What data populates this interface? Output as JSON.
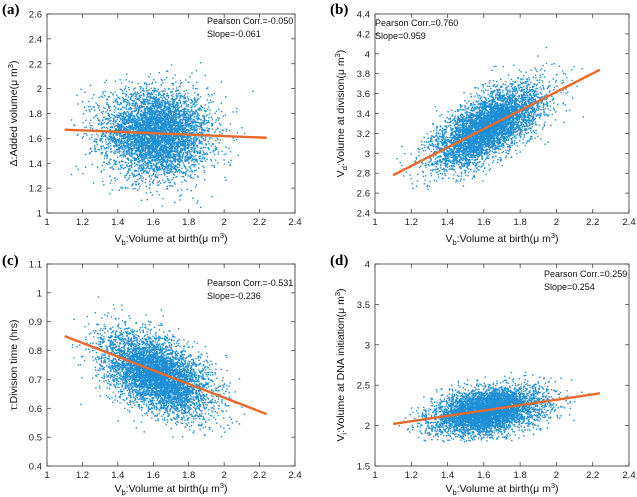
{
  "chart_data": [
    {
      "panel": "(a)",
      "type": "scatter",
      "xlabel": "V_b:Volume at birth(μ m^3)",
      "ylabel": "Δ:Added volume(μ m^3)",
      "xlim": [
        1,
        2.4
      ],
      "ylim": [
        1,
        2.6
      ],
      "xticks": [
        "1",
        "1.2",
        "1.4",
        "1.6",
        "1.8",
        "2",
        "2.2",
        "2.4"
      ],
      "yticks": [
        "1",
        "1.2",
        "1.4",
        "1.6",
        "1.8",
        "2",
        "2.2",
        "2.4",
        "2.6"
      ],
      "annotations": [
        "Pearson Corr.=-0.050",
        "Slope=-0.061"
      ],
      "scatter_cloud": {
        "x_center": 1.62,
        "x_sd": 0.15,
        "y_center": 1.64,
        "y_sd": 0.17,
        "x_range": [
          1.12,
          2.22
        ],
        "y_range": [
          1.02,
          2.5
        ],
        "color": "#1f8fd6"
      },
      "fit_line": {
        "x": [
          1.1,
          2.24
        ],
        "y": [
          1.67,
          1.605
        ],
        "color": "#e8692c"
      }
    },
    {
      "panel": "(b)",
      "type": "scatter",
      "xlabel": "V_b:Volume at birth(μ m^3)",
      "ylabel": "V_d:Volume at division(μ m^3)",
      "xlim": [
        1,
        2.4
      ],
      "ylim": [
        2.4,
        4.4
      ],
      "xticks": [
        "1",
        "1.2",
        "1.4",
        "1.6",
        "1.8",
        "2",
        "2.2",
        "2.4"
      ],
      "yticks": [
        "2.4",
        "2.6",
        "2.8",
        "3",
        "3.2",
        "3.4",
        "3.6",
        "3.8",
        "4",
        "4.2",
        "4.4"
      ],
      "annotations": [
        "Pearson Corr.=0.760",
        "Slope=0.959"
      ],
      "scatter_cloud": {
        "x_center": 1.62,
        "x_sd": 0.15,
        "y_center": 3.26,
        "y_sd": 0.19,
        "x_range": [
          1.12,
          2.22
        ],
        "y_range": [
          2.62,
          4.18
        ],
        "color": "#1f8fd6"
      },
      "fit_line": {
        "x": [
          1.1,
          2.24
        ],
        "y": [
          2.78,
          3.84
        ],
        "color": "#e8692c"
      }
    },
    {
      "panel": "(c)",
      "type": "scatter",
      "xlabel": "V_b:Volume at birth(μ m^3)",
      "ylabel": "τ:Division time (hrs)",
      "xlim": [
        1,
        2.4
      ],
      "ylim": [
        0.4,
        1.1
      ],
      "xticks": [
        "1",
        "1.2",
        "1.4",
        "1.6",
        "1.8",
        "2",
        "2.2",
        "2.4"
      ],
      "yticks": [
        "0.4",
        "0.5",
        "0.6",
        "0.7",
        "0.8",
        "0.9",
        "1",
        "1.1"
      ],
      "annotations": [
        "Pearson Corr.=-0.531",
        "Slope=-0.236"
      ],
      "scatter_cloud": {
        "x_center": 1.62,
        "x_sd": 0.15,
        "y_center": 0.715,
        "y_sd": 0.068,
        "x_range": [
          1.12,
          2.22
        ],
        "y_range": [
          0.5,
          1.0
        ],
        "color": "#1f8fd6"
      },
      "fit_line": {
        "x": [
          1.1,
          2.24
        ],
        "y": [
          0.85,
          0.58
        ],
        "color": "#e8692c"
      }
    },
    {
      "panel": "(d)",
      "type": "scatter",
      "xlabel": "V_b:Volume at birth(μ m^3)",
      "ylabel": "V_i:Volume at DNA initiation(μ m^3)",
      "xlim": [
        1,
        2.4
      ],
      "ylim": [
        1.5,
        4
      ],
      "xticks": [
        "1",
        "1.2",
        "1.4",
        "1.6",
        "1.8",
        "2",
        "2.2",
        "2.4"
      ],
      "yticks": [
        "1.5",
        "2",
        "2.5",
        "3",
        "3.5",
        "4"
      ],
      "annotations": [
        "Pearson Corr.=0.259",
        "Slope=0.254"
      ],
      "scatter_cloud": {
        "x_center": 1.62,
        "x_sd": 0.15,
        "y_center": 2.18,
        "y_sd": 0.14,
        "x_range": [
          1.12,
          2.22
        ],
        "y_range": [
          1.8,
          2.9
        ],
        "color": "#1f8fd6"
      },
      "fit_line": {
        "x": [
          1.1,
          2.24
        ],
        "y": [
          2.02,
          2.4
        ],
        "color": "#e8692c"
      }
    }
  ]
}
